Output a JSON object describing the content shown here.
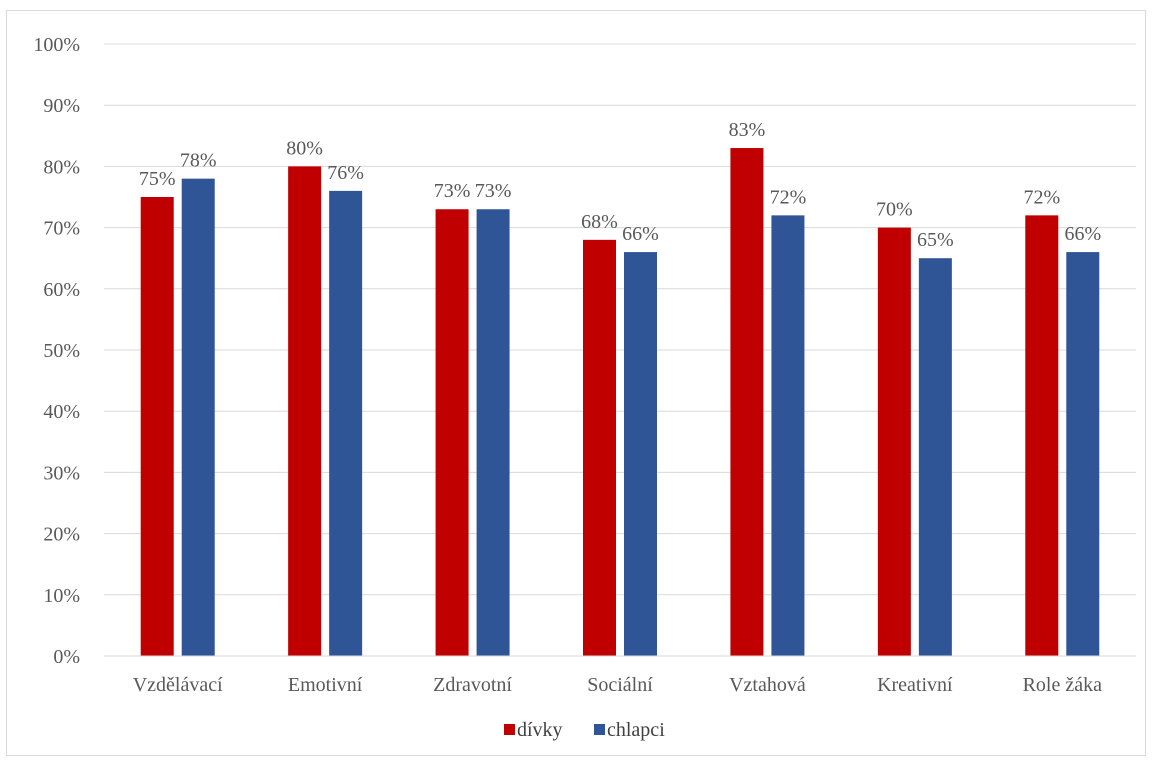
{
  "chart_data": {
    "type": "bar",
    "categories": [
      "Vzdělávací",
      "Emotivní",
      "Zdravotní",
      "Sociální",
      "Vztahová",
      "Kreativní",
      "Role žáka"
    ],
    "series": [
      {
        "name": "dívky",
        "color": "#c00000",
        "values": [
          75,
          80,
          73,
          68,
          83,
          70,
          72
        ]
      },
      {
        "name": "chlapci",
        "color": "#2f5597",
        "values": [
          78,
          76,
          73,
          66,
          72,
          65,
          66
        ]
      }
    ],
    "ylim": [
      0,
      100
    ],
    "y_ticks": [
      0,
      10,
      20,
      30,
      40,
      50,
      60,
      70,
      80,
      90,
      100
    ],
    "y_tick_format": "%",
    "grid": true,
    "legend_position": "bottom",
    "title": "",
    "xlabel": "",
    "ylabel": ""
  }
}
